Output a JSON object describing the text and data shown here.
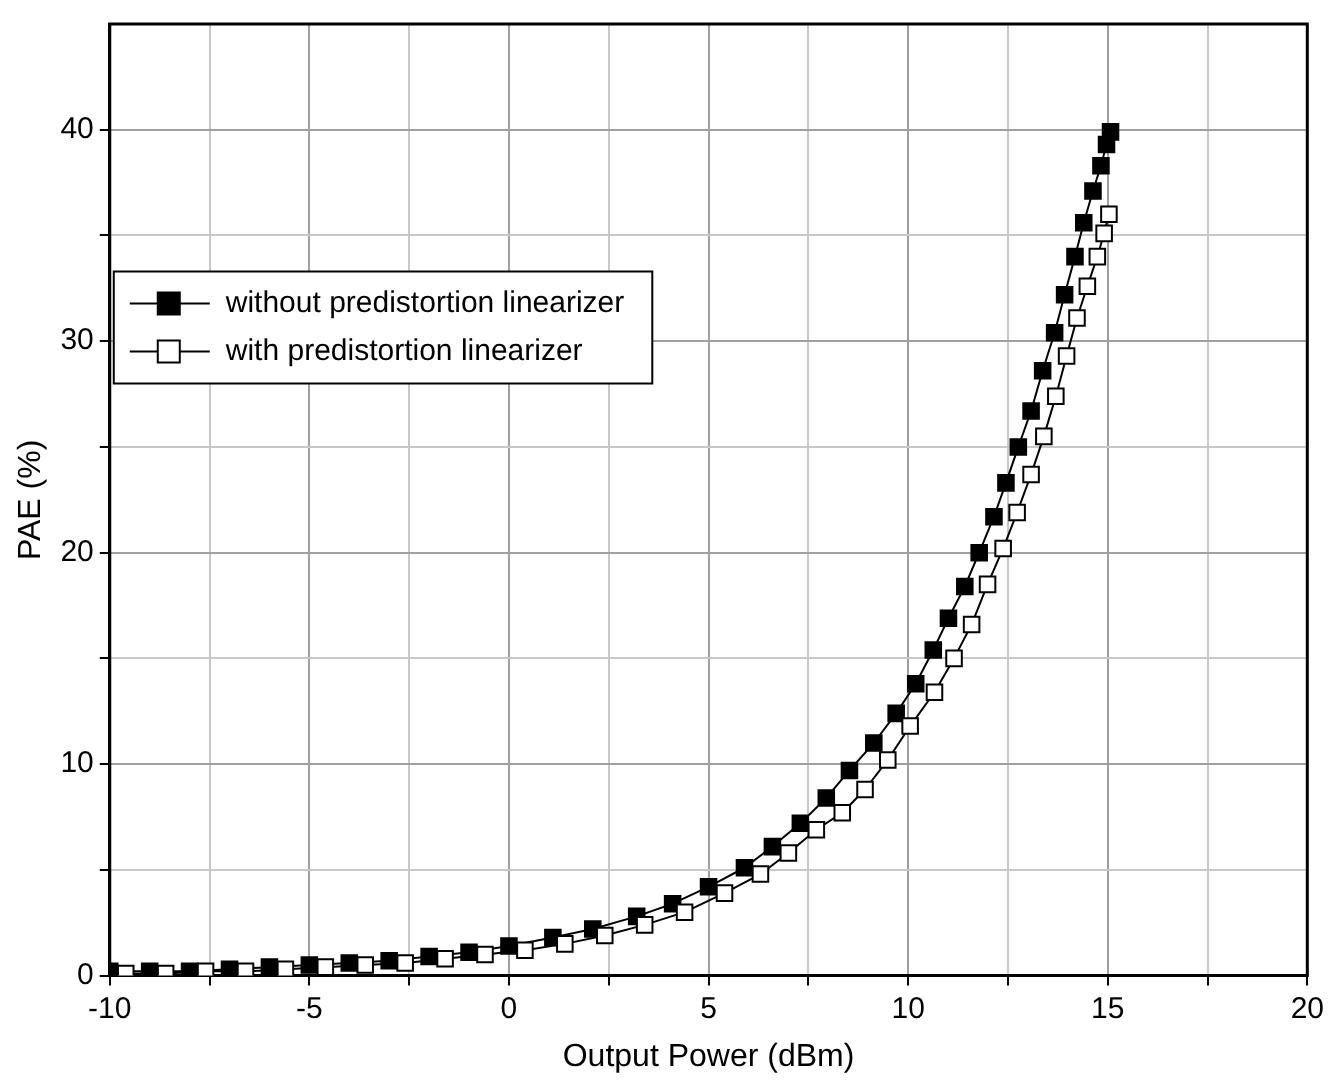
{
  "chart_data": {
    "type": "line",
    "xlabel": "Output Power (dBm)",
    "ylabel": "PAE (%)",
    "xlim": [
      -10,
      20
    ],
    "xticks": [
      -10,
      {
        "value": -7.5,
        "label": null
      },
      -5,
      {
        "value": -2.5,
        "label": null
      },
      0,
      {
        "value": 2.5,
        "label": null
      },
      5,
      {
        "value": 7.5,
        "label": null
      },
      10,
      {
        "value": 12.5,
        "label": null
      },
      15,
      {
        "value": 17.5,
        "label": null
      },
      20
    ],
    "ylim": [
      0,
      45
    ],
    "yticks": [
      0,
      {
        "value": 5,
        "label": null
      },
      10,
      {
        "value": 15,
        "label": null
      },
      20,
      {
        "value": 25,
        "label": null
      },
      30,
      {
        "value": 35,
        "label": null
      },
      40
    ],
    "grid": true,
    "legend": "top left",
    "marker": "square",
    "line_style": "solid",
    "series": [
      {
        "name": "without predistortion linearizer",
        "color": "#000000",
        "x": [
          -10,
          -9,
          -8,
          -7,
          -6,
          -5,
          -4,
          -3,
          -2,
          -1,
          0,
          1.1,
          2.1,
          3.2,
          4.1,
          5,
          5.9,
          6.6,
          7.3,
          7.95,
          8.53,
          9.14,
          9.7,
          10.19,
          10.63,
          11.01,
          11.42,
          11.78,
          12.15,
          12.45,
          12.76,
          13.08,
          13.37,
          13.67,
          13.92,
          14.18,
          14.4,
          14.63,
          14.83,
          14.97,
          15.07
        ],
        "values": [
          0.2,
          0.2,
          0.2,
          0.3,
          0.4,
          0.5,
          0.6,
          0.7,
          0.9,
          1.1,
          1.4,
          1.8,
          2.2,
          2.8,
          3.4,
          4.2,
          5.1,
          6.1,
          7.2,
          8.4,
          9.7,
          11,
          12.4,
          13.8,
          15.4,
          16.9,
          18.4,
          20,
          21.7,
          23.3,
          25,
          26.7,
          28.6,
          30.4,
          32.2,
          34,
          35.6,
          37.1,
          38.3,
          39.3,
          39.9
        ]
      },
      {
        "name": "with predistortion linearizer",
        "color": "#000000",
        "x": [
          -9.6,
          -8.6,
          -7.6,
          -6.6,
          -5.6,
          -4.6,
          -3.6,
          -2.6,
          -1.6,
          -0.6,
          0.4,
          1.4,
          2.4,
          3.4,
          4.4,
          5.4,
          6.3,
          7,
          7.7,
          8.35,
          8.92,
          9.49,
          10.05,
          10.66,
          11.15,
          11.59,
          11.99,
          12.38,
          12.73,
          13.08,
          13.4,
          13.7,
          13.97,
          14.23,
          14.49,
          14.74,
          14.91,
          15.03
        ],
        "values": [
          0.1,
          0.1,
          0.2,
          0.2,
          0.3,
          0.4,
          0.5,
          0.6,
          0.8,
          1,
          1.2,
          1.5,
          1.9,
          2.4,
          3,
          3.9,
          4.8,
          5.8,
          6.9,
          7.7,
          8.8,
          10.2,
          11.8,
          13.4,
          15,
          16.6,
          18.5,
          20.2,
          21.9,
          23.7,
          25.5,
          27.4,
          29.3,
          31.1,
          32.6,
          34,
          35.1,
          36
        ]
      }
    ]
  }
}
